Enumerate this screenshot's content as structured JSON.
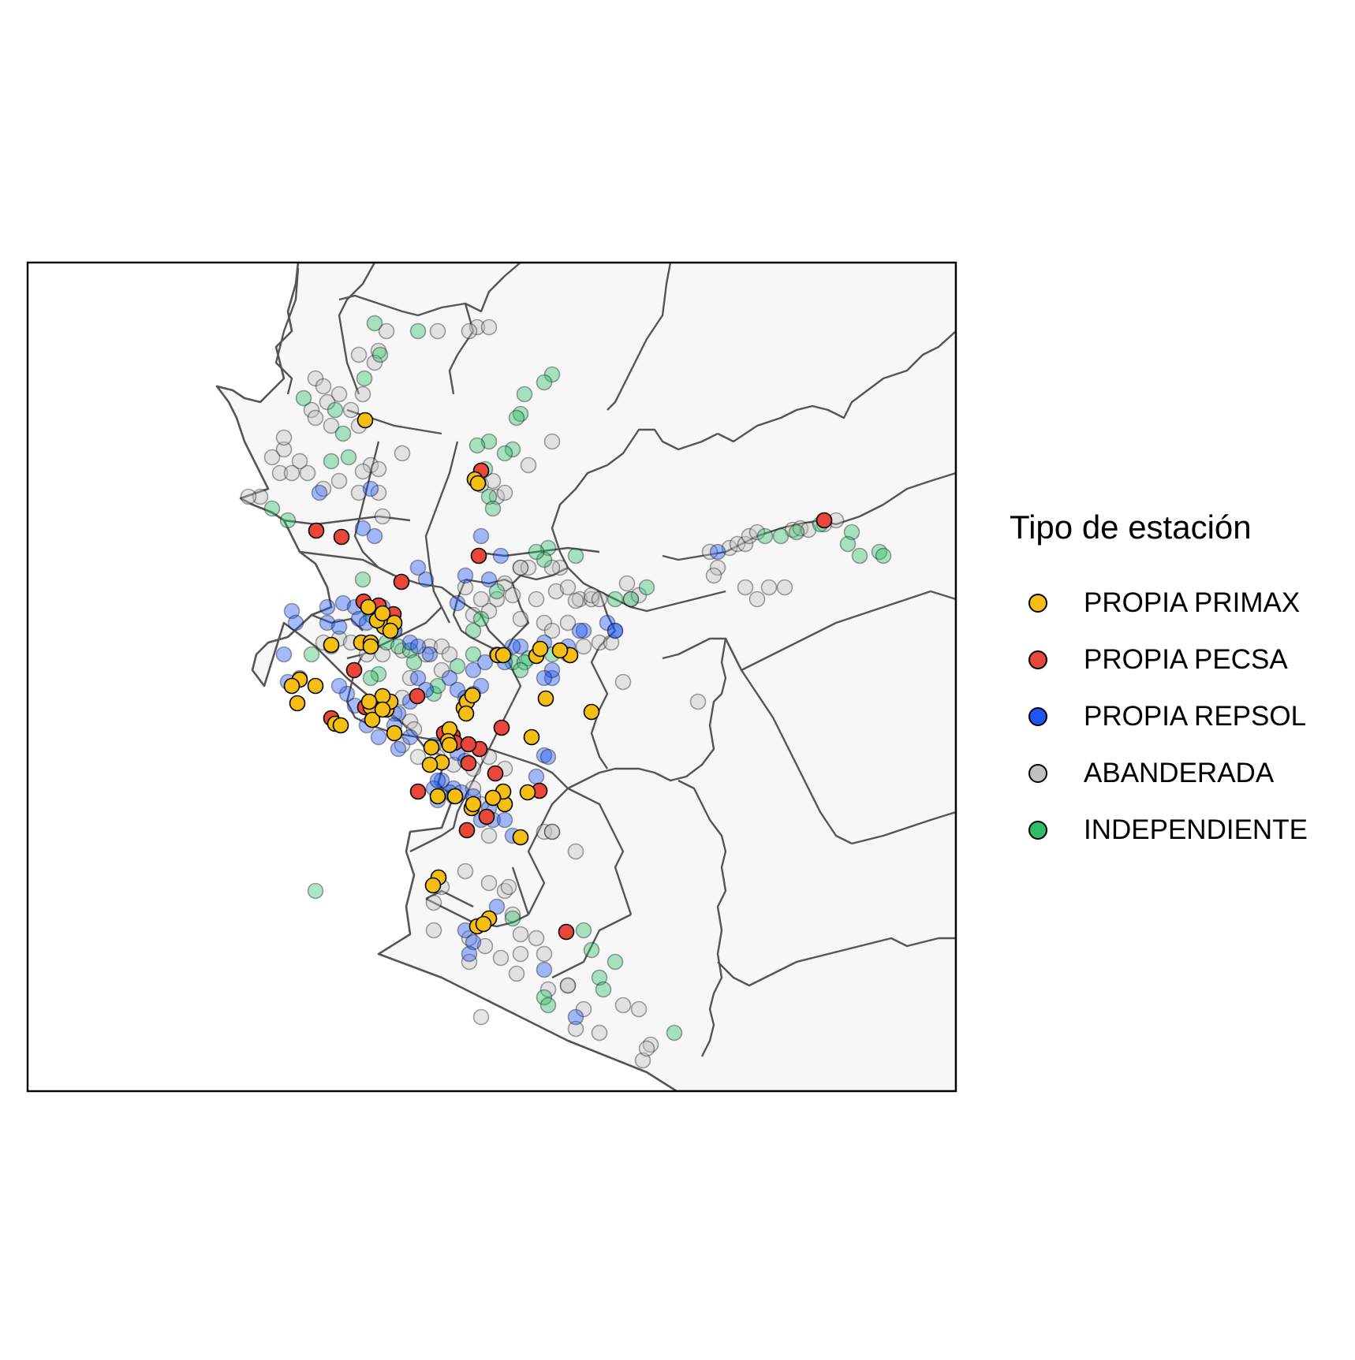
{
  "legend": {
    "title": "Tipo de estación",
    "items": [
      {
        "key": "primax",
        "label": "PROPIA PRIMAX",
        "color": "#F5BE13"
      },
      {
        "key": "pecsa",
        "label": "PROPIA PECSA",
        "color": "#E9463C"
      },
      {
        "key": "repsol",
        "label": "PROPIA REPSOL",
        "color": "#1F55F5"
      },
      {
        "key": "abanderada",
        "label": "ABANDERADA",
        "color": "#C0C0C0"
      },
      {
        "key": "independiente",
        "label": "INDEPENDIENTE",
        "color": "#2DBE6C"
      }
    ]
  },
  "map_style": {
    "land_fill": "#F7F7F7",
    "boundary_color": "#555555",
    "frame_color": "#000000",
    "faded_opacity": 0.4
  }
}
